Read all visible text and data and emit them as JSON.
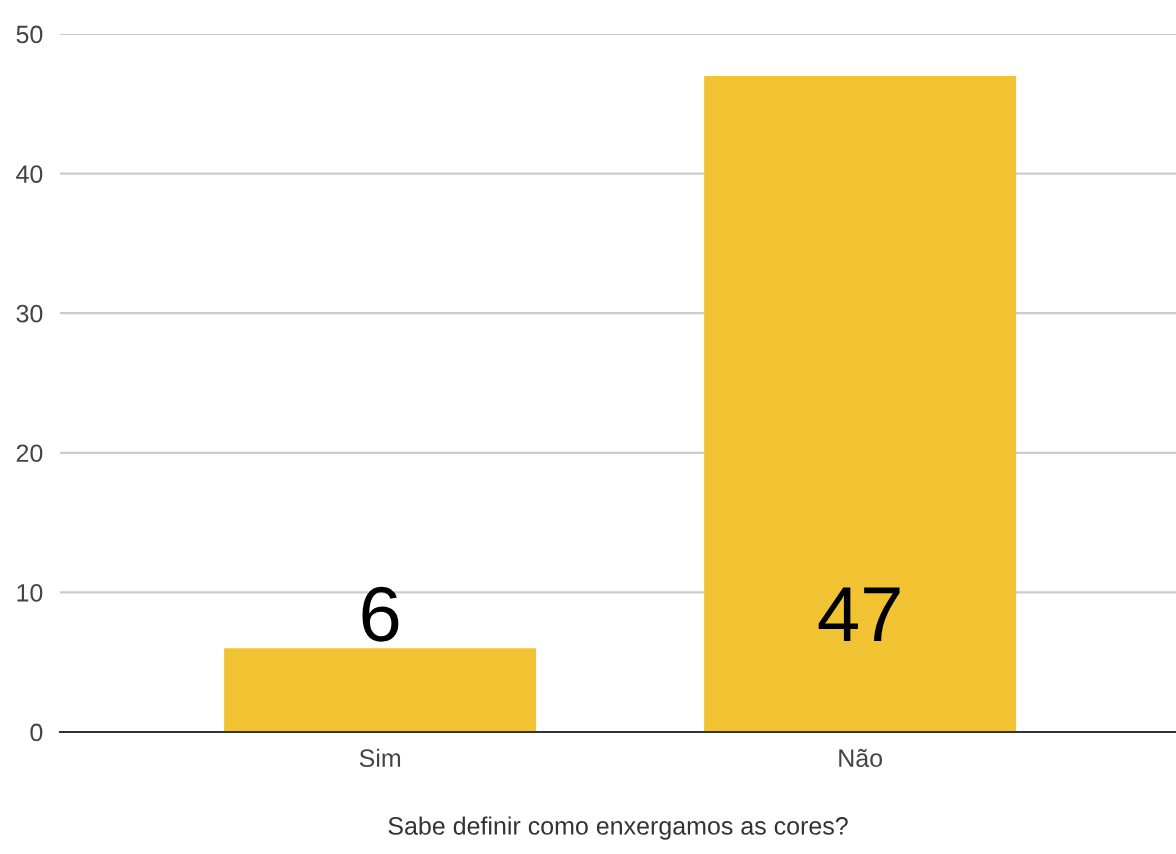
{
  "chart_data": {
    "type": "bar",
    "xlabel": "Sabe definir como enxergamos as cores?",
    "categories": [
      "Sim",
      "Não"
    ],
    "values": [
      6,
      47
    ],
    "color": "#f1c232",
    "ylim": [
      0,
      50
    ],
    "yticks": [
      0,
      10,
      20,
      30,
      40,
      50
    ],
    "grid": "y",
    "data_labels": true
  }
}
